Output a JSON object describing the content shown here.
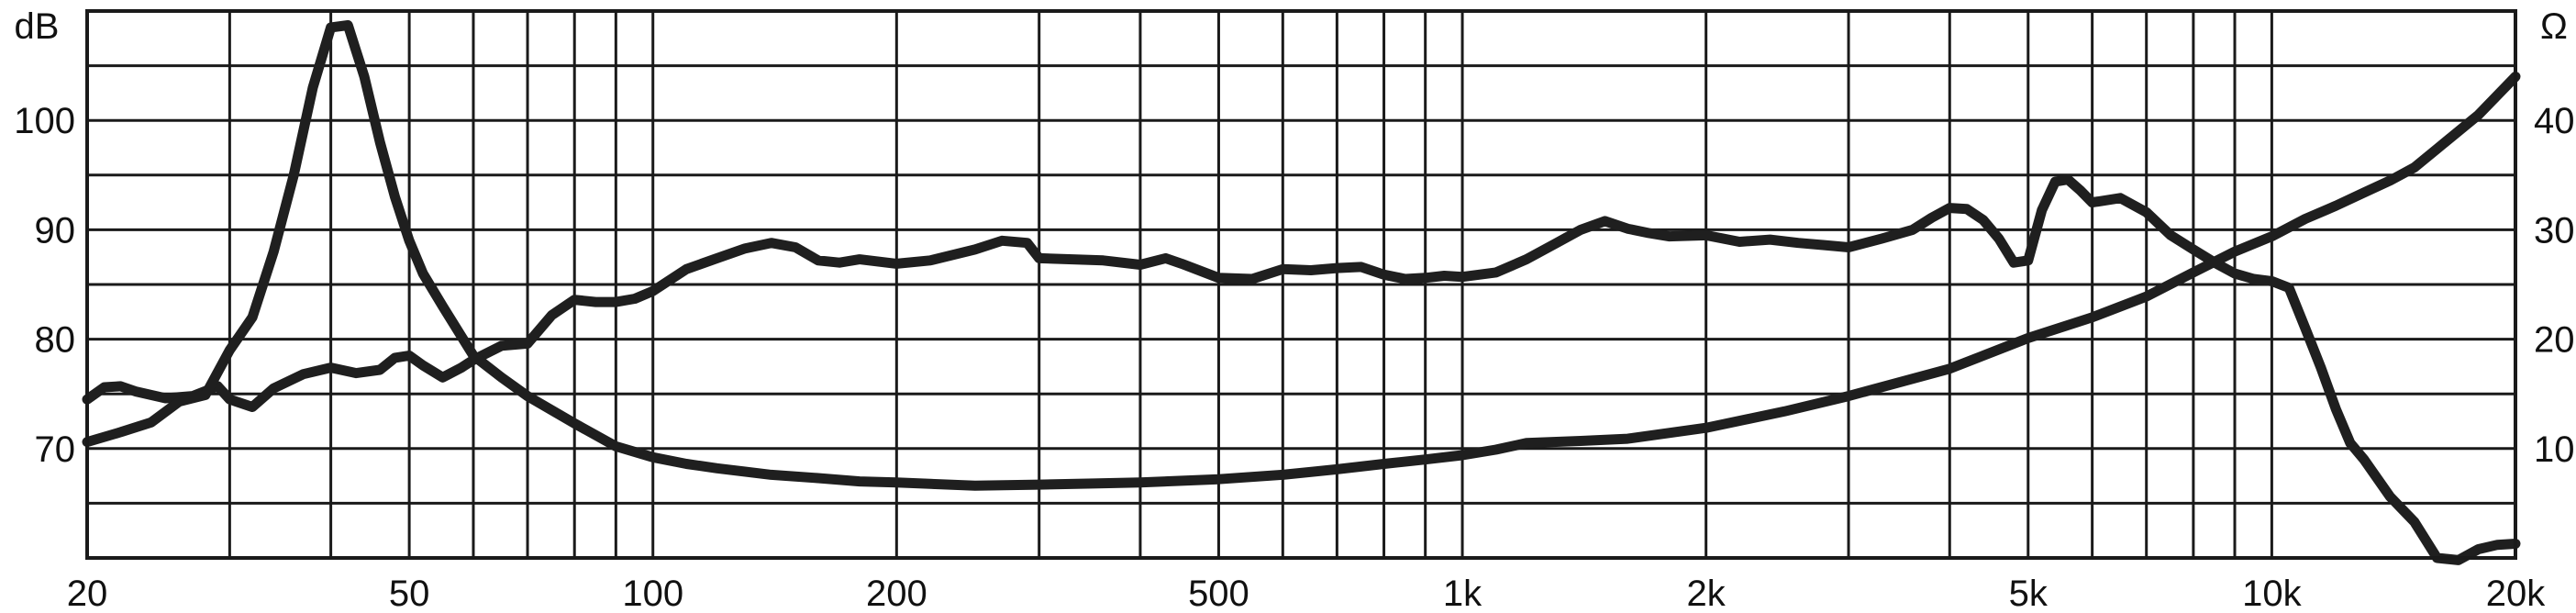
{
  "colors": {
    "background": "#ffffff",
    "grid": "#1a1a1a",
    "curve": "#1f1f1f",
    "text": "#111111"
  },
  "chart_data": {
    "type": "line",
    "title": "",
    "xlabel": "",
    "ylabel": "dB",
    "ylabel_right": "Ω",
    "x_scale": "log",
    "xlim": [
      20,
      20000
    ],
    "ylim": [
      60,
      110
    ],
    "ylim_right": [
      0,
      50
    ],
    "grid": true,
    "legend": "none",
    "x_ticks": [
      20,
      50,
      100,
      200,
      500,
      1000,
      2000,
      5000,
      10000,
      20000
    ],
    "x_tick_labels": [
      "20",
      "50",
      "100",
      "200",
      "500",
      "1k",
      "2k",
      "5k",
      "10k",
      "20k"
    ],
    "y_ticks": [
      70,
      80,
      90,
      100
    ],
    "y_tick_labels": [
      "70",
      "80",
      "90",
      "100"
    ],
    "y_ticks_right": [
      10,
      20,
      30,
      40
    ],
    "y_tick_labels_right": [
      "10",
      "20",
      "30",
      "40"
    ],
    "series": [
      {
        "axis": "left",
        "x": [
          20,
          21,
          22,
          23,
          25,
          27,
          29,
          30,
          32,
          34,
          37,
          40,
          43,
          46,
          48,
          50,
          52,
          55,
          58,
          60,
          65,
          70,
          75,
          80,
          85,
          90,
          95,
          100,
          110,
          120,
          130,
          140,
          150,
          160,
          170,
          180,
          200,
          220,
          250,
          270,
          290,
          300,
          330,
          360,
          400,
          430,
          450,
          500,
          550,
          600,
          650,
          700,
          750,
          800,
          850,
          900,
          950,
          1000,
          1100,
          1200,
          1300,
          1400,
          1500,
          1600,
          1700,
          1800,
          2000,
          2200,
          2400,
          2600,
          2800,
          3000,
          3300,
          3600,
          3800,
          4000,
          4200,
          4400,
          4600,
          4800,
          5000,
          5200,
          5400,
          5600,
          5800,
          6000,
          6500,
          7000,
          7500,
          8000,
          8500,
          9000,
          9500,
          10000,
          10500,
          11000,
          11500,
          12000,
          12500,
          13000,
          14000,
          15000,
          16000,
          17000,
          18000,
          19000,
          20000
        ],
        "values": [
          74.5,
          75.6,
          75.7,
          75.2,
          74.6,
          74.8,
          75.7,
          74.5,
          73.8,
          75.5,
          76.8,
          77.4,
          76.9,
          77.2,
          78.3,
          78.5,
          77.6,
          76.5,
          77.4,
          78.1,
          79.4,
          79.6,
          82.2,
          83.6,
          83.4,
          83.4,
          83.7,
          84.4,
          86.4,
          87.4,
          88.3,
          88.8,
          88.4,
          87.2,
          87.0,
          87.3,
          86.9,
          87.2,
          88.2,
          89.0,
          88.8,
          87.4,
          87.3,
          87.2,
          86.8,
          87.4,
          86.9,
          85.6,
          85.5,
          86.4,
          86.3,
          86.5,
          86.6,
          85.9,
          85.5,
          85.6,
          85.8,
          85.7,
          86.1,
          87.3,
          88.7,
          90.0,
          90.8,
          90.1,
          89.7,
          89.4,
          89.5,
          88.9,
          89.1,
          88.8,
          88.6,
          88.4,
          89.2,
          90.0,
          91.1,
          92.0,
          91.9,
          90.9,
          89.2,
          87.0,
          87.2,
          91.8,
          94.4,
          94.6,
          93.6,
          92.5,
          92.9,
          91.6,
          89.5,
          88.2,
          87.0,
          86.0,
          85.5,
          85.3,
          84.7,
          81.0,
          77.4,
          73.6,
          70.5,
          69.0,
          65.6,
          63.3,
          60.0,
          59.8,
          60.8,
          61.2,
          61.3
        ]
      },
      {
        "axis": "right",
        "x": [
          20,
          22,
          24,
          26,
          28,
          30,
          32,
          34,
          36,
          38,
          40,
          42,
          44,
          46,
          48,
          50,
          52,
          55,
          60,
          65,
          70,
          80,
          90,
          100,
          110,
          120,
          140,
          160,
          180,
          200,
          250,
          300,
          350,
          400,
          500,
          600,
          700,
          800,
          900,
          1000,
          1100,
          1200,
          1400,
          1600,
          2000,
          2500,
          3000,
          4000,
          5000,
          6000,
          7000,
          8000,
          9000,
          10000,
          11000,
          12000,
          13000,
          14000,
          15000,
          16000,
          18000,
          20000
        ],
        "values": [
          10.6,
          11.5,
          12.4,
          14.3,
          14.9,
          19.0,
          22.0,
          28.0,
          35.0,
          43.0,
          48.5,
          48.7,
          44.0,
          38.0,
          33.0,
          29.0,
          26.0,
          23.0,
          18.5,
          16.5,
          14.8,
          12.3,
          10.2,
          9.2,
          8.6,
          8.2,
          7.6,
          7.3,
          7.0,
          6.9,
          6.6,
          6.7,
          6.8,
          6.9,
          7.2,
          7.6,
          8.1,
          8.6,
          9.0,
          9.4,
          9.9,
          10.5,
          10.7,
          10.9,
          11.9,
          13.4,
          14.8,
          17.3,
          20.1,
          22.0,
          23.9,
          26.1,
          28.0,
          29.4,
          31.0,
          32.2,
          33.4,
          34.5,
          35.7,
          37.4,
          40.5,
          44.0
        ]
      }
    ]
  }
}
